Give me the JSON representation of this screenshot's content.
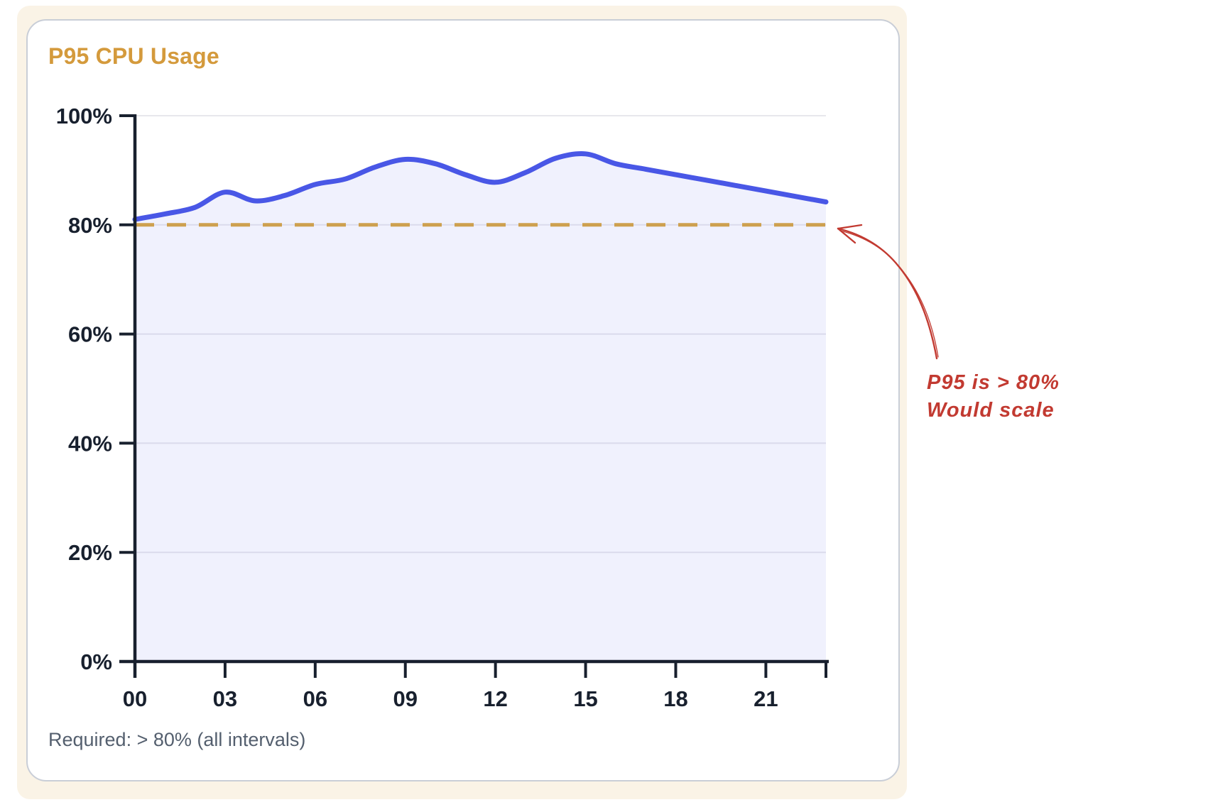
{
  "page": {
    "background_color": "#ffffff",
    "panel_color": "#faf3e6"
  },
  "card": {
    "title": "P95 CPU Usage",
    "title_color": "#d49a3c",
    "footer": "Required: > 80% (all intervals)",
    "border_color": "#c9ced7"
  },
  "chart_data": {
    "type": "area",
    "title": "P95 CPU Usage",
    "series": [
      {
        "name": "P95 CPU Usage",
        "x_hours": [
          0,
          1,
          2,
          3,
          4,
          5,
          6,
          7,
          8,
          9,
          10,
          11,
          12,
          13,
          14,
          15,
          16,
          17,
          18,
          19,
          20,
          21,
          22,
          23
        ],
        "values": [
          81,
          82,
          83.2,
          86,
          84.4,
          85.4,
          87.4,
          88.4,
          90.6,
          92,
          91.2,
          89.2,
          87.8,
          89.6,
          92.2,
          93,
          91.2,
          90.2,
          89.2,
          88.2,
          87.2,
          86.2,
          85.2,
          84.2
        ]
      }
    ],
    "threshold": {
      "value": 80,
      "style": "dashed",
      "color": "#cda04f",
      "meaning": "scaling threshold"
    },
    "xlim": [
      0,
      23
    ],
    "ylim": [
      0,
      100
    ],
    "x_ticks": [
      0,
      3,
      6,
      9,
      12,
      15,
      18,
      21
    ],
    "x_tick_labels": [
      "00",
      "03",
      "06",
      "09",
      "12",
      "15",
      "18",
      "21"
    ],
    "y_ticks": [
      0,
      20,
      40,
      60,
      80,
      100
    ],
    "y_tick_labels": [
      "0%",
      "20%",
      "40%",
      "60%",
      "80%",
      "100%"
    ],
    "grid": "horizontal",
    "legend": "none",
    "line_color": "#4957e6",
    "fill_color": "rgba(105,115,235,0.10)",
    "axis_color": "#18202e",
    "grid_color": "#e7e7ec",
    "tick_label_color": "#18202e"
  },
  "annotation": {
    "line1": "P95 is > 80%",
    "line2": "Would scale",
    "color": "#c23a31"
  }
}
